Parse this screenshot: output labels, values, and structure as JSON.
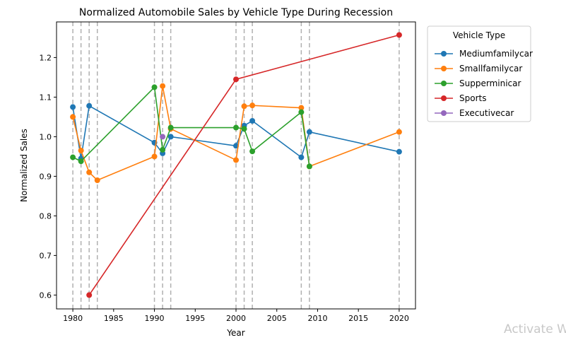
{
  "chart_data": {
    "type": "line",
    "title": "Normalized Automobile Sales by Vehicle Type During Recession",
    "xlabel": "Year",
    "ylabel": "Normalized Sales",
    "xlim": [
      1978,
      2022
    ],
    "ylim": [
      0.565,
      1.29
    ],
    "x_ticks": [
      1980,
      1985,
      1990,
      1995,
      2000,
      2005,
      2010,
      2015,
      2020
    ],
    "y_ticks": [
      0.6,
      0.7,
      0.8,
      0.9,
      1.0,
      1.1,
      1.2
    ],
    "recession_years": [
      1980,
      1981,
      1982,
      1983,
      1990,
      1991,
      1992,
      2000,
      2001,
      2002,
      2008,
      2009,
      2020
    ],
    "grid": false,
    "legend": {
      "title": "Vehicle Type",
      "placement": "outside-top-right"
    },
    "series": [
      {
        "name": "Mediumfamilycar",
        "color": "#1f77b4",
        "x": [
          1980,
          1981,
          1982,
          1990,
          1991,
          1992,
          2000,
          2001,
          2002,
          2008,
          2009,
          2020
        ],
        "y": [
          1.075,
          0.945,
          1.078,
          0.985,
          0.958,
          1.0,
          0.977,
          1.028,
          1.04,
          0.948,
          1.012,
          0.962
        ]
      },
      {
        "name": "Smallfamilycar",
        "color": "#ff7f0e",
        "x": [
          1980,
          1981,
          1982,
          1983,
          1990,
          1991,
          1992,
          2000,
          2001,
          2002,
          2008,
          2009,
          2020
        ],
        "y": [
          1.05,
          0.965,
          0.91,
          0.89,
          0.95,
          1.128,
          1.02,
          0.941,
          1.077,
          1.079,
          1.073,
          0.925,
          1.012
        ]
      },
      {
        "name": "Supperminicar",
        "color": "#2ca02c",
        "x": [
          1980,
          1981,
          1990,
          1991,
          1992,
          2000,
          2001,
          2002,
          2008,
          2009
        ],
        "y": [
          0.948,
          0.938,
          1.125,
          0.967,
          1.023,
          1.023,
          1.02,
          0.963,
          1.062,
          0.925
        ]
      },
      {
        "name": "Sports",
        "color": "#d62728",
        "x": [
          1982,
          2000,
          2020
        ],
        "y": [
          0.6,
          1.145,
          1.257
        ]
      },
      {
        "name": "Executivecar",
        "color": "#9467bd",
        "x": [
          1991
        ],
        "y": [
          1.0
        ]
      }
    ]
  },
  "watermark": "Activate W"
}
